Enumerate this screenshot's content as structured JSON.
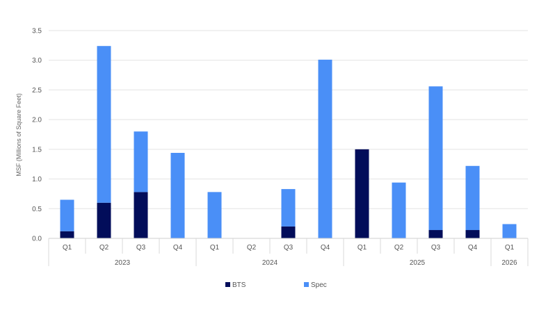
{
  "chart_data": {
    "type": "bar",
    "stacked": true,
    "ylabel": "MSF (Millions of Square Feet)",
    "ylim": [
      0,
      3.5
    ],
    "yticks": [
      "0.0",
      "0.5",
      "1.0",
      "1.5",
      "2.0",
      "2.5",
      "3.0",
      "3.5"
    ],
    "grid": true,
    "legend_position": "bottom",
    "categories": [
      {
        "quarter": "Q1",
        "year": "2023"
      },
      {
        "quarter": "Q2",
        "year": "2023"
      },
      {
        "quarter": "Q3",
        "year": "2023"
      },
      {
        "quarter": "Q4",
        "year": "2023"
      },
      {
        "quarter": "Q1",
        "year": "2024"
      },
      {
        "quarter": "Q2",
        "year": "2024"
      },
      {
        "quarter": "Q3",
        "year": "2024"
      },
      {
        "quarter": "Q4",
        "year": "2024"
      },
      {
        "quarter": "Q1",
        "year": "2025"
      },
      {
        "quarter": "Q2",
        "year": "2025"
      },
      {
        "quarter": "Q3",
        "year": "2025"
      },
      {
        "quarter": "Q4",
        "year": "2025"
      },
      {
        "quarter": "Q1",
        "year": "2026"
      }
    ],
    "years": [
      "2023",
      "2024",
      "2025",
      "2026"
    ],
    "series": [
      {
        "name": "BTS",
        "color": "#020d5a",
        "values": [
          0.12,
          0.6,
          0.78,
          0,
          0,
          0,
          0.2,
          0,
          1.5,
          0,
          0.14,
          0.14,
          0
        ]
      },
      {
        "name": "Spec",
        "color": "#4a8ff7",
        "values": [
          0.53,
          2.64,
          1.02,
          1.44,
          0.78,
          0,
          0.63,
          3.01,
          0,
          0.94,
          2.42,
          1.08,
          0.24
        ]
      }
    ]
  }
}
